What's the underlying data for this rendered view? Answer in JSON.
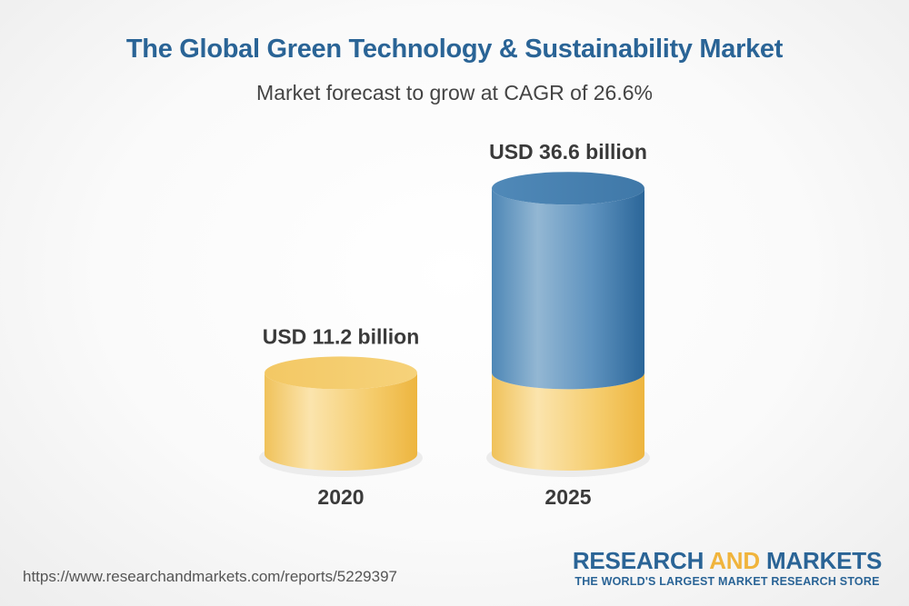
{
  "chart_data": {
    "type": "bar",
    "title": "The Global Green Technology & Sustainability Market",
    "subtitle": "Market forecast to grow at CAGR of 26.6%",
    "categories": [
      "2020",
      "2025"
    ],
    "values": [
      11.2,
      36.6
    ],
    "value_labels": [
      "USD 11.2 billion",
      "USD 36.6 billion"
    ],
    "xlabel": "",
    "ylabel": "",
    "grid": false,
    "colors": {
      "base": "#f5c14e",
      "growth": "#3f7fb0"
    }
  },
  "footer": {
    "source_url": "https://www.researchandmarkets.com/reports/5229397",
    "brand_part1": "RESEARCH ",
    "brand_part2": "AND",
    "brand_part3": " MARKETS",
    "brand_tagline": "THE WORLD'S LARGEST MARKET RESEARCH STORE"
  },
  "colors": {
    "title": "#2a6496",
    "brand_accent": "#f0b43c"
  }
}
